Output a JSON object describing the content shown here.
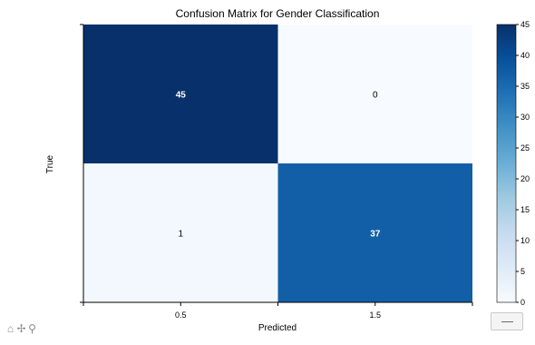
{
  "chart_data": {
    "type": "heatmap",
    "title": "Confusion Matrix for Gender Classification",
    "xlabel": "Predicted",
    "ylabel": "True",
    "x_ticks": [
      "0.5",
      "1.5"
    ],
    "matrix": [
      [
        45,
        0
      ],
      [
        1,
        37
      ]
    ],
    "colormap": "Blues",
    "colorbar": {
      "min": 0,
      "max": 45,
      "ticks": [
        0,
        5,
        10,
        15,
        20,
        25,
        30,
        35,
        40,
        45
      ]
    },
    "colors": {
      "cell_45": "#08306b",
      "cell_37": "#105ba4",
      "cell_1": "#f2f7fd",
      "cell_0": "#f7fbff"
    }
  },
  "toolbar": {
    "home_icon": "home-icon",
    "pan_icon": "pan-icon",
    "zoom_icon": "zoom-icon"
  }
}
